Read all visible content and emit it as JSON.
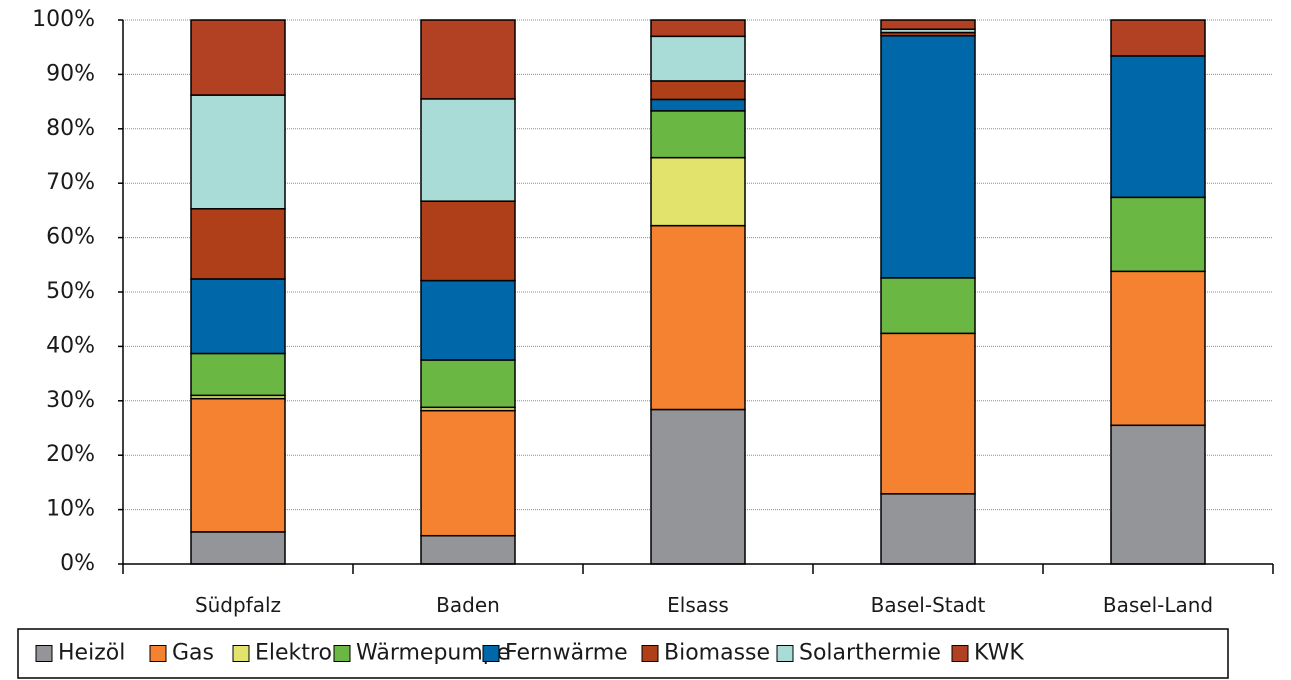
{
  "chart_data": {
    "type": "bar",
    "stacked": true,
    "title": "",
    "categories": [
      "Südpfalz",
      "Baden",
      "Elsass",
      "Basel-Stadt",
      "Basel-Land"
    ],
    "series": [
      {
        "name": "Heizöl",
        "color": "#939598",
        "values": [
          5.9,
          5.2,
          28.4,
          12.9,
          25.5
        ]
      },
      {
        "name": "Gas",
        "color": "#f58230",
        "values": [
          24.5,
          23.0,
          33.8,
          29.5,
          28.3
        ]
      },
      {
        "name": "Elektro",
        "color": "#e2e36c",
        "values": [
          0.6,
          0.6,
          12.5,
          0.0,
          0.0
        ]
      },
      {
        "name": "Wärmepumpe",
        "color": "#6ab744",
        "values": [
          7.7,
          8.7,
          8.6,
          10.2,
          13.6
        ]
      },
      {
        "name": "Fernwärme",
        "color": "#0068a9",
        "values": [
          13.7,
          14.6,
          2.1,
          44.5,
          26.0
        ]
      },
      {
        "name": "Biomasse",
        "color": "#ae3f18",
        "values": [
          12.9,
          14.6,
          3.4,
          0.6,
          0.0
        ]
      },
      {
        "name": "Solarthermie",
        "color": "#a9dbd7",
        "values": [
          20.9,
          18.8,
          8.2,
          0.6,
          0.0
        ]
      },
      {
        "name": "KWK",
        "color": "#b24022",
        "values": [
          13.8,
          14.5,
          3.0,
          1.7,
          6.6
        ]
      }
    ],
    "ylim": [
      0,
      100
    ],
    "yticks": [
      "0%",
      "10%",
      "20%",
      "30%",
      "40%",
      "50%",
      "60%",
      "70%",
      "80%",
      "90%",
      "100%"
    ],
    "grid": true,
    "legend_position": "bottom",
    "xlabel": "",
    "ylabel": ""
  }
}
